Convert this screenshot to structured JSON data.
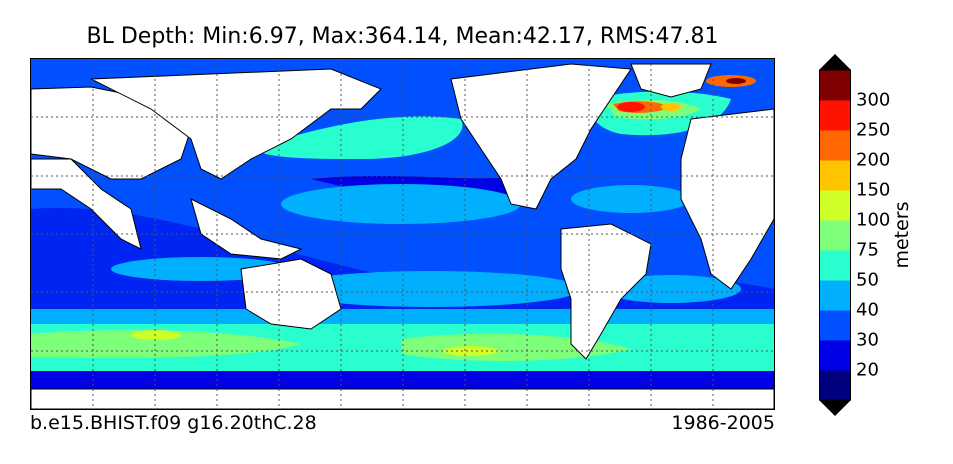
{
  "title": "BL Depth: Min:6.97, Max:364.14, Mean:42.17, RMS:47.81",
  "footer": {
    "case_name": "b.e15.BHIST.f09 g16.20thC.28",
    "years": "1986-2005"
  },
  "colorbar": {
    "units": "meters",
    "levels": [
      10,
      20,
      30,
      40,
      50,
      75,
      100,
      150,
      200,
      250,
      300,
      350
    ],
    "tick_labels": [
      "20",
      "30",
      "40",
      "50",
      "75",
      "100",
      "150",
      "200",
      "250",
      "300"
    ],
    "colors": [
      "#00007f",
      "#0000e6",
      "#0050ff",
      "#00b0ff",
      "#29ffce",
      "#7dff7a",
      "#ceff29",
      "#ffc400",
      "#ff6800",
      "#ff1300",
      "#7f0000"
    ],
    "extend": "both"
  },
  "map": {
    "land_color": "#ffffff",
    "grid": true,
    "gridline_style": "dotted"
  }
}
